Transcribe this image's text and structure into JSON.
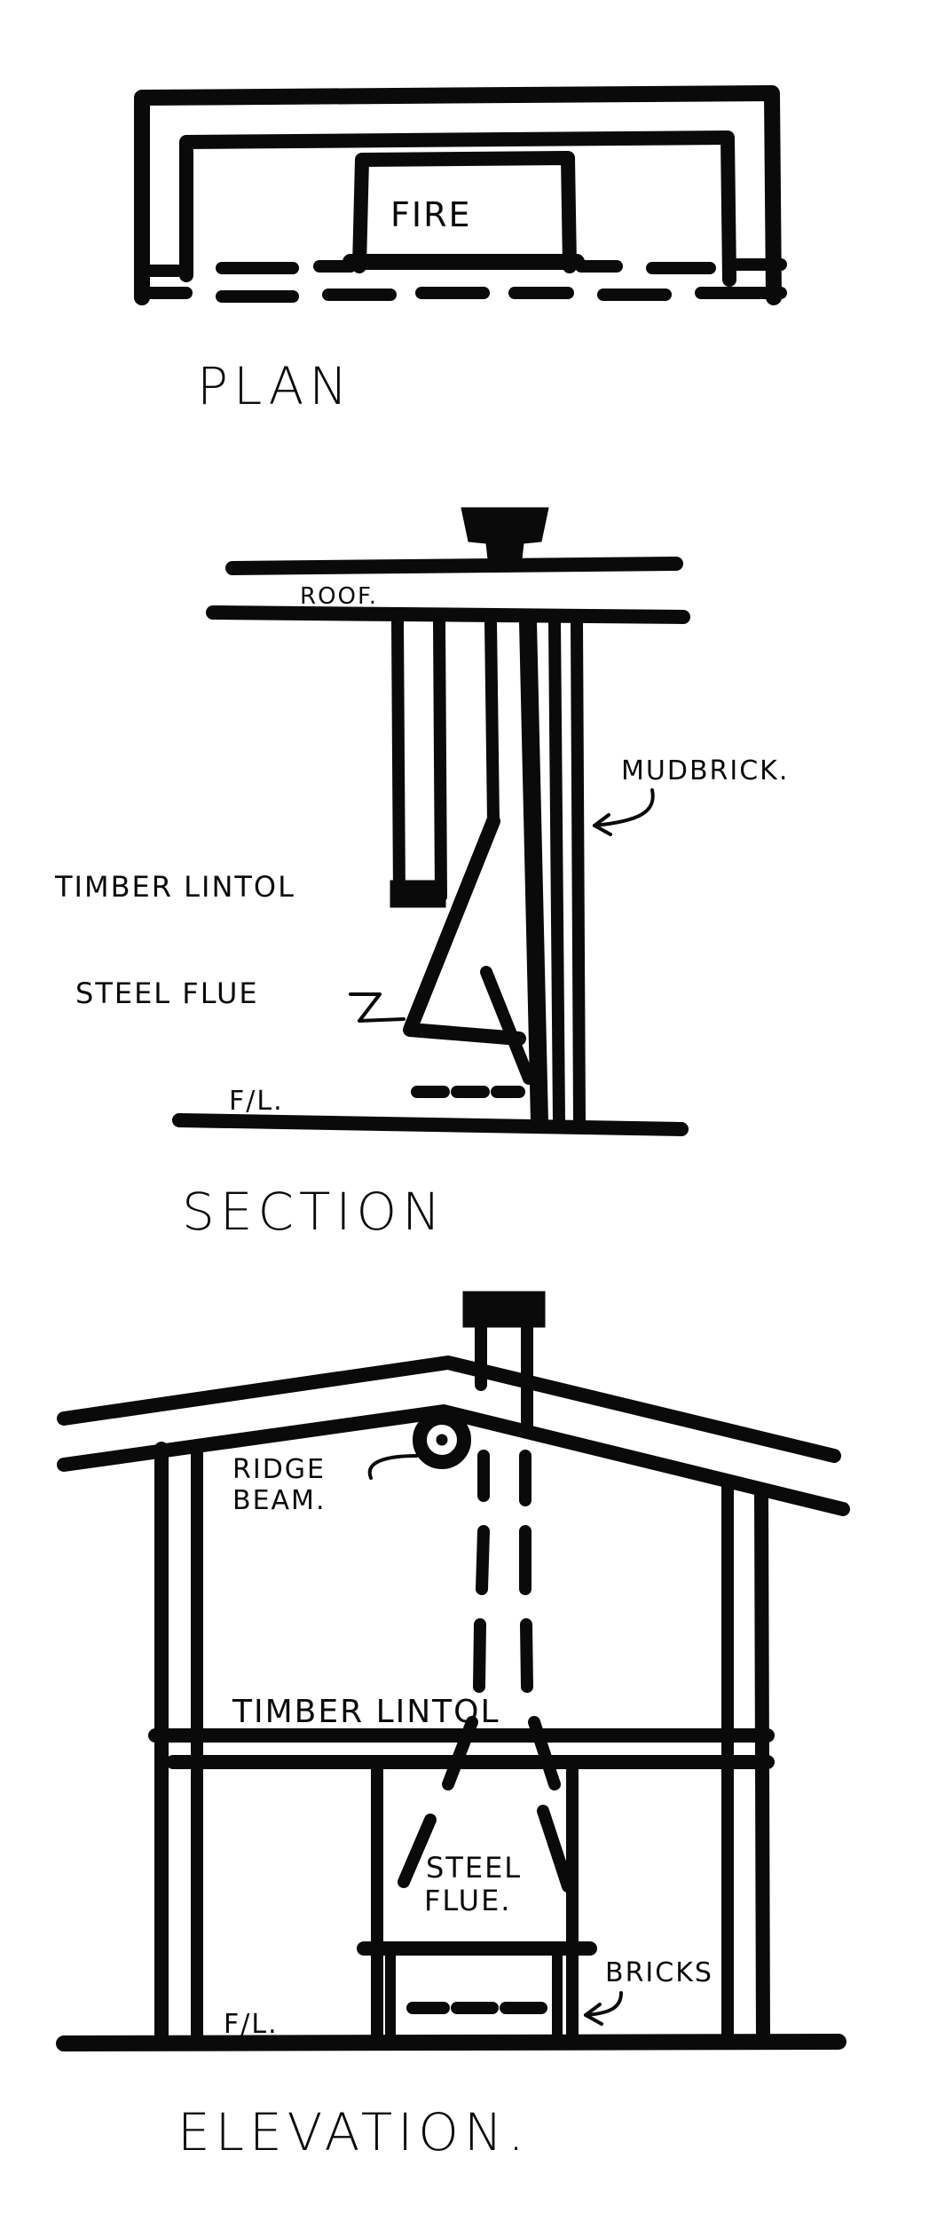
{
  "plan": {
    "fire_label": "FIRE",
    "title": "PLAN"
  },
  "section": {
    "roof_label": "ROOF.",
    "mudbrick_label": "MUDBRICK.",
    "timber_lintol_label": "TIMBER LINTOL",
    "steel_flue_label": "STEEL FLUE",
    "floor_level_label": "F/L.",
    "title": "SECTION"
  },
  "elevation": {
    "ridge_beam_line1": "RIDGE",
    "ridge_beam_line2": "BEAM.",
    "timber_lintol_label": "TIMBER LINTOL",
    "steel_flue_line1": "STEEL",
    "steel_flue_line2": "FLUE.",
    "bricks_label": "BRICKS",
    "floor_level_label": "F/L.",
    "title": "ELEVATION."
  },
  "ink_color": "#0a0a0a",
  "paper_color": "#ffffff"
}
